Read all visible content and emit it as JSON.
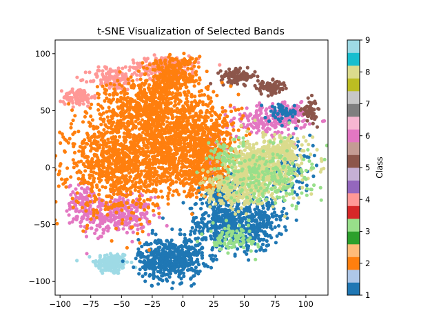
{
  "chart_data": {
    "type": "scatter",
    "title": "t-SNE Visualization of Selected Bands",
    "xlabel": "",
    "ylabel": "",
    "xlim": [
      -104,
      118
    ],
    "ylim": [
      -112,
      112
    ],
    "x_ticks": [
      -100,
      -75,
      -50,
      -25,
      0,
      25,
      50,
      75,
      100
    ],
    "y_ticks": [
      -100,
      -50,
      0,
      50,
      100
    ],
    "grid": false,
    "colorbar": {
      "label": "Class",
      "range": [
        1,
        9
      ],
      "ticks": [
        1,
        2,
        3,
        4,
        5,
        6,
        7,
        8,
        9
      ],
      "colormap": "tab20",
      "segments": [
        "#1f77b4",
        "#aec7e8",
        "#ff7f0e",
        "#ffbb78",
        "#2ca02c",
        "#98df8a",
        "#d62728",
        "#ff9896",
        "#9467bd",
        "#c5b0d5",
        "#8c564b",
        "#c49c94",
        "#e377c2",
        "#f7b6d2",
        "#7f7f7f",
        "#c7c7c7",
        "#bcbd22",
        "#dbdb8d",
        "#17becf",
        "#9edae5"
      ]
    },
    "series": [
      {
        "class": 9,
        "color": "#9edae5",
        "clusters": [
          {
            "x": -58,
            "y": -84,
            "sx": 7,
            "sy": 5,
            "n": 160
          }
        ]
      },
      {
        "class": 6,
        "color": "#e377c2",
        "clusters": [
          {
            "x": -55,
            "y": -42,
            "sx": 15,
            "sy": 8,
            "n": 300
          },
          {
            "x": -80,
            "y": -30,
            "sx": 7,
            "sy": 8,
            "n": 90
          },
          {
            "x": 70,
            "y": 42,
            "sx": 15,
            "sy": 7,
            "n": 200
          },
          {
            "x": 90,
            "y": 48,
            "sx": 7,
            "sy": 4,
            "n": 60
          },
          {
            "x": 25,
            "y": 10,
            "sx": 5,
            "sy": 10,
            "n": 60
          }
        ]
      },
      {
        "class": 4,
        "color": "#ff9896",
        "clusters": [
          {
            "x": -85,
            "y": 62,
            "sx": 6,
            "sy": 4,
            "n": 90
          },
          {
            "x": -58,
            "y": 78,
            "sx": 9,
            "sy": 5,
            "n": 110
          },
          {
            "x": -15,
            "y": 88,
            "sx": 14,
            "sy": 5,
            "n": 180
          }
        ]
      },
      {
        "class": 5,
        "color": "#8c564b",
        "clusters": [
          {
            "x": 45,
            "y": 80,
            "sx": 7,
            "sy": 3,
            "n": 110
          },
          {
            "x": 72,
            "y": 70,
            "sx": 6,
            "sy": 3,
            "n": 90
          },
          {
            "x": 103,
            "y": 50,
            "sx": 3,
            "sy": 5,
            "n": 60
          }
        ]
      },
      {
        "class": 1,
        "color": "#1f77b4",
        "clusters": [
          {
            "x": -10,
            "y": -80,
            "sx": 13,
            "sy": 9,
            "n": 500
          },
          {
            "x": 35,
            "y": -50,
            "sx": 16,
            "sy": 12,
            "n": 420
          },
          {
            "x": 62,
            "y": -48,
            "sx": 10,
            "sy": 10,
            "n": 200
          },
          {
            "x": 32,
            "y": -20,
            "sx": 9,
            "sy": 7,
            "n": 120
          },
          {
            "x": 85,
            "y": 0,
            "sx": 10,
            "sy": 10,
            "n": 120
          },
          {
            "x": 82,
            "y": 48,
            "sx": 6,
            "sy": 4,
            "n": 60
          }
        ]
      },
      {
        "class": 2,
        "color": "#ff7f0e",
        "clusters": [
          {
            "x": -50,
            "y": 5,
            "sx": 22,
            "sy": 22,
            "n": 1100
          },
          {
            "x": 5,
            "y": 25,
            "sx": 20,
            "sy": 18,
            "n": 900
          },
          {
            "x": -30,
            "y": 55,
            "sx": 16,
            "sy": 12,
            "n": 450
          },
          {
            "x": -8,
            "y": 80,
            "sx": 10,
            "sy": 10,
            "n": 300
          },
          {
            "x": 15,
            "y": -5,
            "sx": 12,
            "sy": 10,
            "n": 250
          }
        ]
      },
      {
        "class": 8,
        "color": "#dbdb8d",
        "clusters": [
          {
            "x": 65,
            "y": 0,
            "sx": 15,
            "sy": 11,
            "n": 550
          },
          {
            "x": 45,
            "y": -20,
            "sx": 14,
            "sy": 8,
            "n": 250
          },
          {
            "x": 80,
            "y": 15,
            "sx": 9,
            "sy": 6,
            "n": 150
          }
        ]
      },
      {
        "class": 3,
        "color": "#98df8a",
        "clusters": [
          {
            "x": 70,
            "y": -5,
            "sx": 18,
            "sy": 14,
            "n": 220
          },
          {
            "x": 40,
            "y": -62,
            "sx": 10,
            "sy": 6,
            "n": 90
          },
          {
            "x": 35,
            "y": 10,
            "sx": 6,
            "sy": 6,
            "n": 50
          }
        ]
      }
    ]
  }
}
